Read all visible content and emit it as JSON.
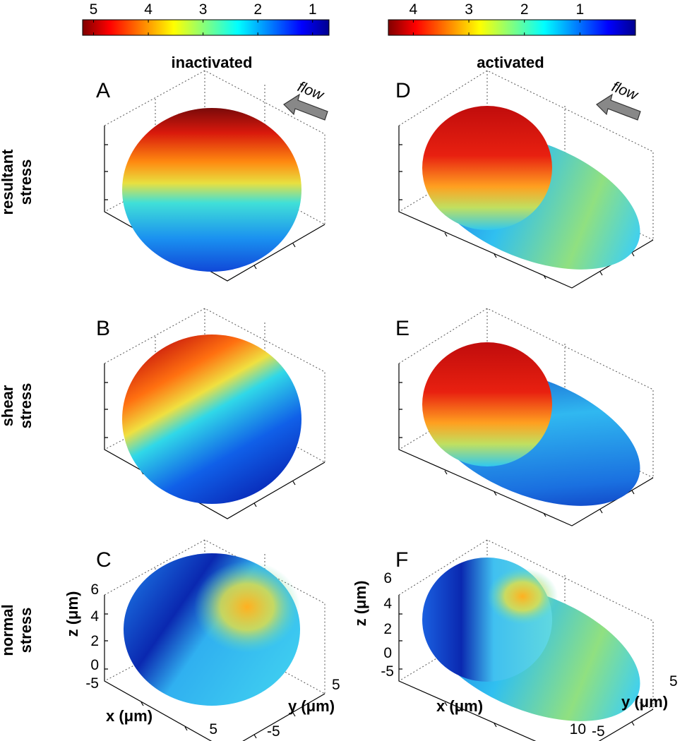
{
  "colorbars": [
    {
      "lim": [
        5.2,
        0.7
      ],
      "ticks": [
        5,
        4,
        3,
        2,
        1
      ]
    },
    {
      "lim": [
        4.45,
        0
      ],
      "ticks": [
        4,
        3,
        2,
        1
      ]
    }
  ],
  "columns": [
    {
      "title": "inactivated",
      "flow_label": "flow"
    },
    {
      "title": "activated",
      "flow_label": "flow"
    }
  ],
  "rows": [
    {
      "label": [
        "resultant",
        "stress"
      ]
    },
    {
      "label": [
        "shear",
        "stress"
      ]
    },
    {
      "label": [
        "normal",
        "stress"
      ]
    }
  ],
  "panels": [
    {
      "letter": "A"
    },
    {
      "letter": "B"
    },
    {
      "letter": "C"
    },
    {
      "letter": "D"
    },
    {
      "letter": "E"
    },
    {
      "letter": "F"
    }
  ],
  "axes": [
    {
      "z_label": "z (μm)",
      "z_ticks": [
        0,
        2,
        4,
        6
      ],
      "x_label": "x (μm)",
      "x_ticks": [
        -5,
        5
      ],
      "y_label": "y (μm)",
      "y_ticks": [
        5,
        -5
      ]
    },
    {
      "z_label": "z (μm)",
      "z_ticks": [
        0,
        2,
        4,
        6
      ],
      "x_label": "x (μm)",
      "x_ticks": [
        -5,
        10
      ],
      "y_label": "y (μm)",
      "y_ticks": [
        5,
        -5
      ]
    }
  ]
}
